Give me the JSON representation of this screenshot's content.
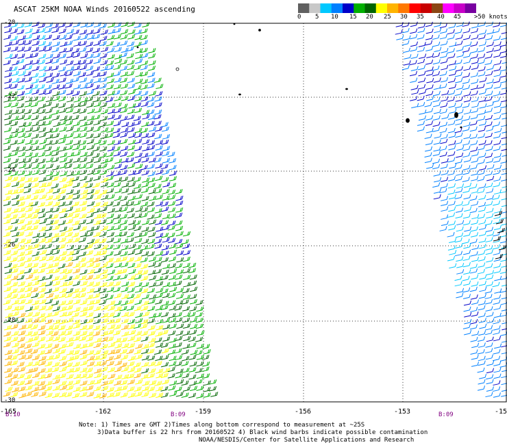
{
  "title": "ASCAT 25KM NOAA Winds 20160522 ascending",
  "legend": {
    "colors": [
      "#606060",
      "#c8c8c8",
      "#00c8ff",
      "#0080ff",
      "#0000c8",
      "#00b000",
      "#006400",
      "#ffff00",
      "#ffb400",
      "#ff7800",
      "#ff0000",
      "#c80000",
      "#8b4513",
      "#ff00ff",
      "#c800c8",
      "#7800a0"
    ],
    "labels": [
      "0",
      "5",
      "10",
      "15",
      "20",
      "25",
      "30",
      "35",
      "40",
      "45",
      ">50 knots"
    ]
  },
  "map": {
    "lon_labels": [
      "-165",
      "-162",
      "-159",
      "-156",
      "-153",
      "-15"
    ],
    "lat_labels": [
      "-20",
      "-22",
      "-24",
      "-26",
      "-28",
      "-30"
    ],
    "time_labels": [
      "B:10",
      "B:09",
      "B:09"
    ]
  },
  "notes": {
    "line1": "Note: 1) Times are GMT 2)Times along bottom correspond to measurement at ~25S",
    "line2": "3)Data buffer is 22 hrs from 20160522 4) Black wind barbs indicate possible contamination",
    "line3": "NOAA/NESDIS/Center for Satellite Applications and Research"
  }
}
